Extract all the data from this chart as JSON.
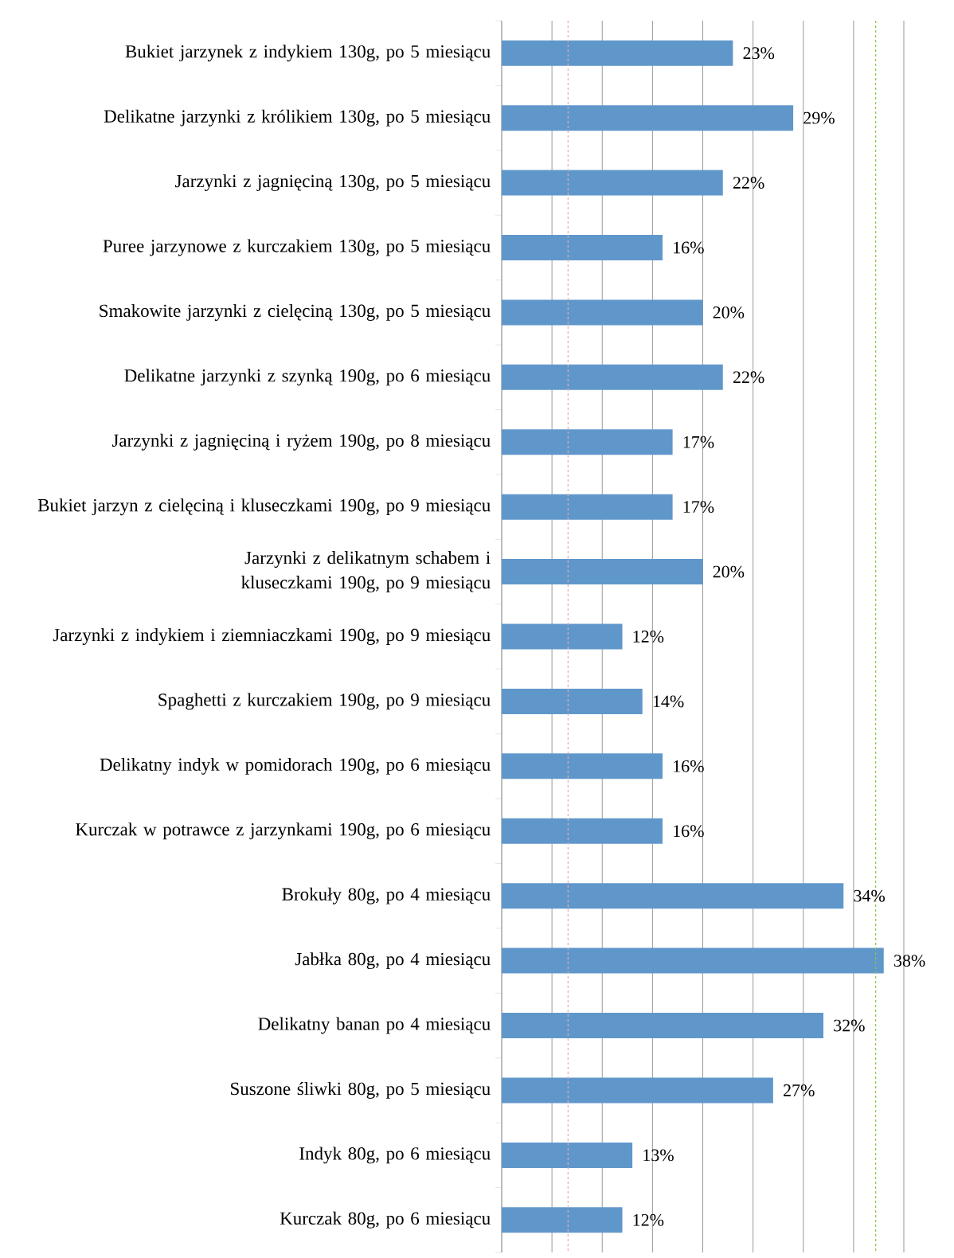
{
  "chart_data": {
    "type": "bar",
    "orientation": "horizontal",
    "color": "#6097cb",
    "categories": [
      "Bukiet jarzynek z indykiem 130g, po 5 miesiącu",
      "Delikatne jarzynki z królikiem 130g, po 5 miesiącu",
      "Jarzynki z jagnięciną 130g, po 5 miesiącu",
      "Puree jarzynowe z kurczakiem 130g, po 5 miesiącu",
      "Smakowite jarzynki z cielęciną 130g, po 5 miesiącu",
      "Delikatne jarzynki z szynką 190g, po 6 miesiącu",
      "Jarzynki z jagnięciną i ryżem 190g, po 8 miesiącu",
      "Bukiet jarzyn z cielęciną i kluseczkami 190g, po 9 miesiącu",
      "Jarzynki z delikatnym schabem i kluseczkami 190g, po 9 miesiącu",
      "Jarzynki z indykiem i ziemniaczkami 190g, po 9 miesiącu",
      "Spaghetti z kurczakiem 190g, po 9 miesiącu",
      "Delikatny indyk w pomidorach 190g, po 6 miesiącu",
      "Kurczak w potrawce z jarzynkami 190g, po 6 miesiącu",
      "Brokuły 80g, po 4 miesiącu",
      "Jabłka 80g, po 4 miesiącu",
      "Delikatny banan po 4 miesiącu",
      "Suszone śliwki 80g, po 5 miesiącu",
      "Indyk 80g, po 6 miesiącu",
      "Kurczak 80g, po 6 miesiącu"
    ],
    "values": [
      23,
      29,
      22,
      16,
      20,
      22,
      17,
      17,
      20,
      12,
      14,
      16,
      16,
      34,
      38,
      32,
      27,
      13,
      12
    ],
    "value_labels": [
      "23%",
      "29%",
      "22%",
      "16%",
      "20%",
      "22%",
      "17%",
      "17%",
      "20%",
      "12%",
      "14%",
      "16%",
      "16%",
      "34%",
      "38%",
      "32%",
      "27%",
      "13%",
      "12%"
    ],
    "xlim": [
      0,
      40
    ],
    "xticks": [
      {
        "value": 0,
        "label": null
      },
      {
        "value": 5,
        "label": null
      },
      {
        "value": 10,
        "label": null
      },
      {
        "value": 15,
        "label": null
      },
      {
        "value": 20,
        "label": null
      },
      {
        "value": 25,
        "label": null
      },
      {
        "value": 30,
        "label": null
      },
      {
        "value": 35,
        "label": null
      },
      {
        "value": 40,
        "label": null
      }
    ],
    "grid": "x",
    "tick_labels": "y",
    "ref_lines": [
      {
        "axis": "x",
        "value": 6.6,
        "color": "#e8a9b0",
        "line_style": "dashed"
      },
      {
        "axis": "x",
        "value": 37.2,
        "color": "#8cc63f",
        "line_style": "dashed"
      }
    ]
  }
}
